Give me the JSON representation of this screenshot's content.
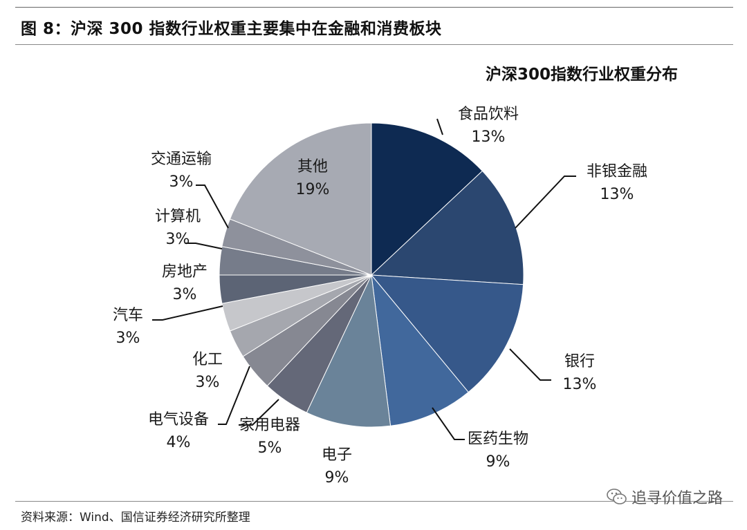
{
  "header": {
    "figure_title": "图 8：沪深 300 指数行业权重主要集中在金融和消费板块"
  },
  "footer": {
    "source": "资料来源：Wind、国信证券经济研究所整理",
    "watermark": "追寻价值之路",
    "watermark_icon": "wechat-icon"
  },
  "chart_data": {
    "type": "pie",
    "title": "沪深300指数行业权重分布",
    "start_angle_deg": 0,
    "direction": "clockwise",
    "slices": [
      {
        "label": "食品饮料",
        "pct_label": "13%",
        "value": 13,
        "color": "#0e2a52"
      },
      {
        "label": "非银金融",
        "pct_label": "13%",
        "value": 13,
        "color": "#2b4770"
      },
      {
        "label": "银行",
        "pct_label": "13%",
        "value": 13,
        "color": "#36588a"
      },
      {
        "label": "医药生物",
        "pct_label": "9%",
        "value": 9,
        "color": "#41689c"
      },
      {
        "label": "电子",
        "pct_label": "9%",
        "value": 9,
        "color": "#6a8399"
      },
      {
        "label": "家用电器",
        "pct_label": "5%",
        "value": 5,
        "color": "#646878"
      },
      {
        "label": "电气设备",
        "pct_label": "4%",
        "value": 4,
        "color": "#868892"
      },
      {
        "label": "化工",
        "pct_label": "3%",
        "value": 3,
        "color": "#a5a7ae"
      },
      {
        "label": "汽车",
        "pct_label": "3%",
        "value": 3,
        "color": "#c6c7cb"
      },
      {
        "label": "房地产",
        "pct_label": "3%",
        "value": 3,
        "color": "#5c6475"
      },
      {
        "label": "计算机",
        "pct_label": "3%",
        "value": 3,
        "color": "#767c8a"
      },
      {
        "label": "交通运输",
        "pct_label": "3%",
        "value": 3,
        "color": "#8e919c"
      },
      {
        "label": "其他",
        "pct_label": "19%",
        "value": 19,
        "color": "#a7aab3"
      }
    ]
  }
}
